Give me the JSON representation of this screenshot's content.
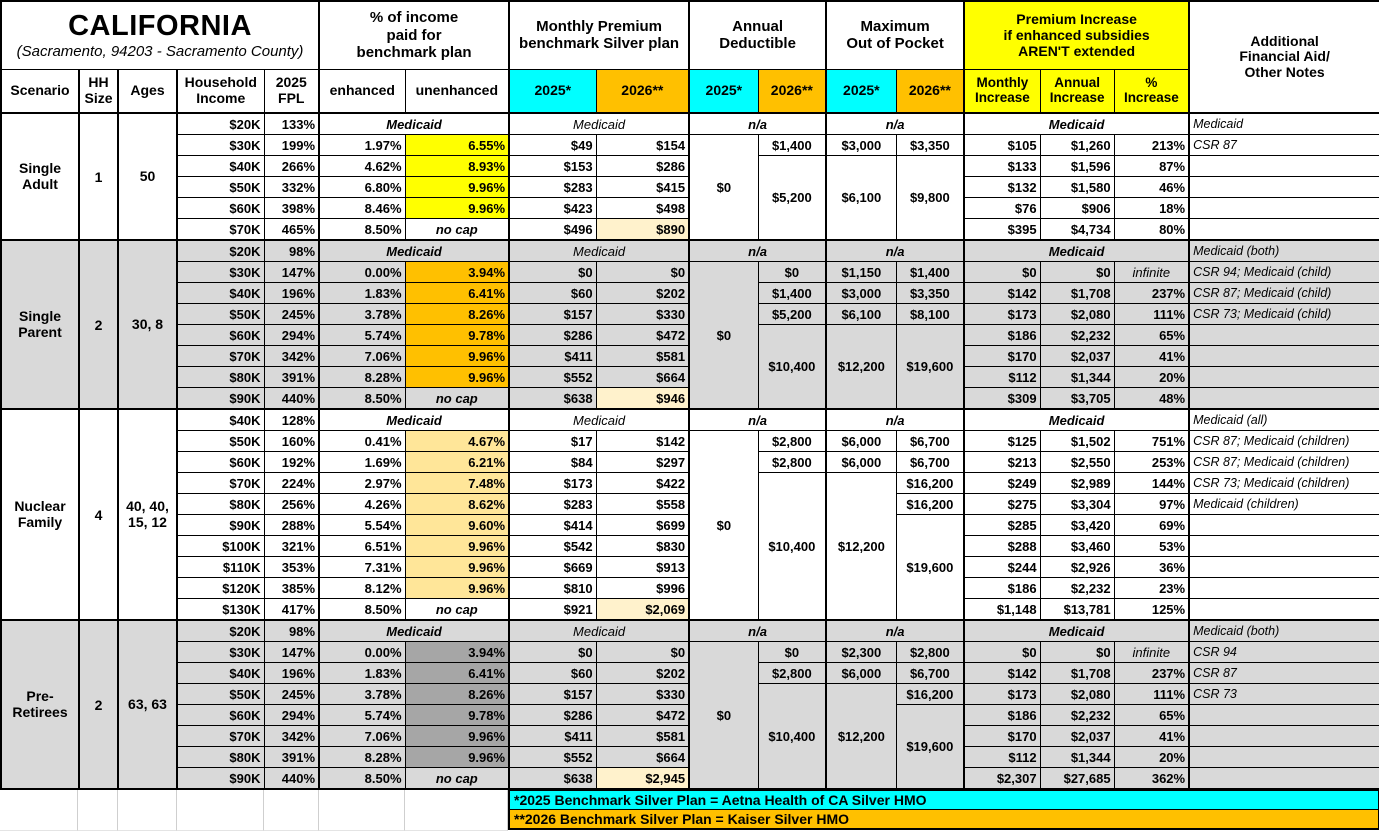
{
  "title": {
    "name": "CALIFORNIA",
    "location": "(Sacramento, 94203 - Sacramento County)"
  },
  "colors": {
    "cyan": "#00FFFF",
    "orange": "#FFC000",
    "yellow": "#FFFF00",
    "premium_highlight": "#FFF2CC",
    "light_gold": "#FFE699",
    "section_gray": "#D9D9D9",
    "dark_gray": "#A6A6A6"
  },
  "header": {
    "scenario": "Scenario",
    "hh_size": "HH\nSize",
    "ages": "Ages",
    "income": "Household\nIncome",
    "fpl": "2025\nFPL",
    "pct_income_group": "% of income\npaid for\nbenchmark plan",
    "enhanced": "enhanced",
    "unenhanced": "unenhanced",
    "premium_group": "Monthly Premium\nbenchmark Silver plan",
    "deductible_group": "Annual\nDeductible",
    "moop_group": "Maximum\nOut of Pocket",
    "increase_group": "Premium Increase\nif enhanced subsidies\nAREN'T extended",
    "y2025": "2025*",
    "y2026": "2026**",
    "monthly_increase": "Monthly\nIncrease",
    "annual_increase": "Annual\nIncrease",
    "pct_increase": "%\nIncrease",
    "notes_group": "Additional\nFinancial Aid/\nOther Notes"
  },
  "footnotes": {
    "f2025": "*2025 Benchmark Silver Plan = Aetna Health of CA Silver HMO",
    "f2026": "**2026 Benchmark Silver Plan = Kaiser Silver HMO"
  },
  "sections": [
    {
      "scenario": "Single\nAdult",
      "hh": "1",
      "ages": "50",
      "bg": "white",
      "unenhanced_bg": "yellow",
      "rows": [
        {
          "type": "medicaid",
          "income": "$20K",
          "fpl": "133%",
          "notes": "Medicaid"
        },
        {
          "income": "$30K",
          "fpl": "199%",
          "enh": "1.97%",
          "unenh": "6.55%",
          "p25": "$49",
          "p26": "$154",
          "d25": {
            "v": "$0",
            "rs": 5
          },
          "d26": "$1,400",
          "m25": "$3,000",
          "m26": "$3,350",
          "im": "$105",
          "ia": "$1,260",
          "ip": "213%",
          "notes": "CSR 87"
        },
        {
          "income": "$40K",
          "fpl": "266%",
          "enh": "4.62%",
          "unenh": "8.93%",
          "p25": "$153",
          "p26": "$286",
          "d26": {
            "v": "$5,200",
            "rs": 4
          },
          "m25": {
            "v": "$6,100",
            "rs": 4
          },
          "m26": {
            "v": "$9,800",
            "rs": 4
          },
          "im": "$133",
          "ia": "$1,596",
          "ip": "87%",
          "notes": ""
        },
        {
          "income": "$50K",
          "fpl": "332%",
          "enh": "6.80%",
          "unenh": "9.96%",
          "p25": "$283",
          "p26": "$415",
          "im": "$132",
          "ia": "$1,580",
          "ip": "46%",
          "notes": ""
        },
        {
          "income": "$60K",
          "fpl": "398%",
          "enh": "8.46%",
          "unenh": "9.96%",
          "p25": "$423",
          "p26": "$498",
          "im": "$76",
          "ia": "$906",
          "ip": "18%",
          "notes": ""
        },
        {
          "income": "$70K",
          "fpl": "465%",
          "enh": "8.50%",
          "nocap": true,
          "p25": "$496",
          "p26": "$890",
          "p26hl": true,
          "im": "$395",
          "ia": "$4,734",
          "ip": "80%",
          "notes": ""
        }
      ]
    },
    {
      "scenario": "Single\nParent",
      "hh": "2",
      "ages": "30, 8",
      "bg": "gray",
      "unenhanced_bg": "orange",
      "rows": [
        {
          "type": "medicaid",
          "income": "$20K",
          "fpl": "98%",
          "notes": "Medicaid (both)"
        },
        {
          "income": "$30K",
          "fpl": "147%",
          "enh": "0.00%",
          "unenh": "3.94%",
          "p25": "$0",
          "p26": "$0",
          "d25": {
            "v": "$0",
            "rs": 7
          },
          "d26": "$0",
          "m25": "$1,150",
          "m26": "$1,400",
          "im": "$0",
          "ia": "$0",
          "ip": "infinite",
          "notes": "CSR 94; Medicaid (child)"
        },
        {
          "income": "$40K",
          "fpl": "196%",
          "enh": "1.83%",
          "unenh": "6.41%",
          "p25": "$60",
          "p26": "$202",
          "d26": "$1,400",
          "m25": "$3,000",
          "m26": "$3,350",
          "im": "$142",
          "ia": "$1,708",
          "ip": "237%",
          "notes": "CSR 87; Medicaid (child)"
        },
        {
          "income": "$50K",
          "fpl": "245%",
          "enh": "3.78%",
          "unenh": "8.26%",
          "p25": "$157",
          "p26": "$330",
          "d26": "$5,200",
          "m25": "$6,100",
          "m26": "$8,100",
          "im": "$173",
          "ia": "$2,080",
          "ip": "111%",
          "notes": "CSR 73; Medicaid (child)"
        },
        {
          "income": "$60K",
          "fpl": "294%",
          "enh": "5.74%",
          "unenh": "9.78%",
          "p25": "$286",
          "p26": "$472",
          "d26": {
            "v": "$10,400",
            "rs": 4
          },
          "m25": {
            "v": "$12,200",
            "rs": 4
          },
          "m26": {
            "v": "$19,600",
            "rs": 4
          },
          "im": "$186",
          "ia": "$2,232",
          "ip": "65%",
          "notes": ""
        },
        {
          "income": "$70K",
          "fpl": "342%",
          "enh": "7.06%",
          "unenh": "9.96%",
          "p25": "$411",
          "p26": "$581",
          "im": "$170",
          "ia": "$2,037",
          "ip": "41%",
          "notes": ""
        },
        {
          "income": "$80K",
          "fpl": "391%",
          "enh": "8.28%",
          "unenh": "9.96%",
          "p25": "$552",
          "p26": "$664",
          "im": "$112",
          "ia": "$1,344",
          "ip": "20%",
          "notes": ""
        },
        {
          "income": "$90K",
          "fpl": "440%",
          "enh": "8.50%",
          "nocap": true,
          "p25": "$638",
          "p26": "$946",
          "p26hl": true,
          "im": "$309",
          "ia": "$3,705",
          "ip": "48%",
          "notes": ""
        }
      ]
    },
    {
      "scenario": "Nuclear\nFamily",
      "hh": "4",
      "ages": "40, 40,\n15, 12",
      "bg": "white",
      "unenhanced_bg": "light_gold",
      "rows": [
        {
          "type": "medicaid",
          "income": "$40K",
          "fpl": "128%",
          "notes": "Medicaid (all)"
        },
        {
          "income": "$50K",
          "fpl": "160%",
          "enh": "0.41%",
          "unenh": "4.67%",
          "p25": "$17",
          "p26": "$142",
          "d25": {
            "v": "$0",
            "rs": 9
          },
          "d26": "$2,800",
          "m25": "$6,000",
          "m26": "$6,700",
          "im": "$125",
          "ia": "$1,502",
          "ip": "751%",
          "notes": "CSR 87; Medicaid (children)"
        },
        {
          "income": "$60K",
          "fpl": "192%",
          "enh": "1.69%",
          "unenh": "6.21%",
          "p25": "$84",
          "p26": "$297",
          "d26": "$2,800",
          "m25": "$6,000",
          "m26": "$6,700",
          "im": "$213",
          "ia": "$2,550",
          "ip": "253%",
          "notes": "CSR 87; Medicaid (children)"
        },
        {
          "income": "$70K",
          "fpl": "224%",
          "enh": "2.97%",
          "unenh": "7.48%",
          "p25": "$173",
          "p26": "$422",
          "d26": {
            "v": "$10,400",
            "rs": 7
          },
          "m25": {
            "v": "$12,200",
            "rs": 7
          },
          "m26": "$16,200",
          "im": "$249",
          "ia": "$2,989",
          "ip": "144%",
          "notes": "CSR 73; Medicaid (children)"
        },
        {
          "income": "$80K",
          "fpl": "256%",
          "enh": "4.26%",
          "unenh": "8.62%",
          "p25": "$283",
          "p26": "$558",
          "m26": "$16,200",
          "im": "$275",
          "ia": "$3,304",
          "ip": "97%",
          "notes": "Medicaid (children)"
        },
        {
          "income": "$90K",
          "fpl": "288%",
          "enh": "5.54%",
          "unenh": "9.60%",
          "p25": "$414",
          "p26": "$699",
          "m26": {
            "v": "$19,600",
            "rs": 5
          },
          "im": "$285",
          "ia": "$3,420",
          "ip": "69%",
          "notes": ""
        },
        {
          "income": "$100K",
          "fpl": "321%",
          "enh": "6.51%",
          "unenh": "9.96%",
          "p25": "$542",
          "p26": "$830",
          "im": "$288",
          "ia": "$3,460",
          "ip": "53%",
          "notes": ""
        },
        {
          "income": "$110K",
          "fpl": "353%",
          "enh": "7.31%",
          "unenh": "9.96%",
          "p25": "$669",
          "p26": "$913",
          "im": "$244",
          "ia": "$2,926",
          "ip": "36%",
          "notes": ""
        },
        {
          "income": "$120K",
          "fpl": "385%",
          "enh": "8.12%",
          "unenh": "9.96%",
          "p25": "$810",
          "p26": "$996",
          "im": "$186",
          "ia": "$2,232",
          "ip": "23%",
          "notes": ""
        },
        {
          "income": "$130K",
          "fpl": "417%",
          "enh": "8.50%",
          "nocap": true,
          "p25": "$921",
          "p26": "$2,069",
          "p26hl": true,
          "im": "$1,148",
          "ia": "$13,781",
          "ip": "125%",
          "notes": ""
        }
      ]
    },
    {
      "scenario": "Pre-\nRetirees",
      "hh": "2",
      "ages": "63, 63",
      "bg": "gray",
      "unenhanced_bg": "dark_gray",
      "rows": [
        {
          "type": "medicaid",
          "income": "$20K",
          "fpl": "98%",
          "notes": "Medicaid (both)"
        },
        {
          "income": "$30K",
          "fpl": "147%",
          "enh": "0.00%",
          "unenh": "3.94%",
          "p25": "$0",
          "p26": "$0",
          "d25": {
            "v": "$0",
            "rs": 7
          },
          "d26": "$0",
          "m25": "$2,300",
          "m26": "$2,800",
          "im": "$0",
          "ia": "$0",
          "ip": "infinite",
          "notes": "CSR 94"
        },
        {
          "income": "$40K",
          "fpl": "196%",
          "enh": "1.83%",
          "unenh": "6.41%",
          "p25": "$60",
          "p26": "$202",
          "d26": "$2,800",
          "m25": "$6,000",
          "m26": "$6,700",
          "im": "$142",
          "ia": "$1,708",
          "ip": "237%",
          "notes": "CSR 87"
        },
        {
          "income": "$50K",
          "fpl": "245%",
          "enh": "3.78%",
          "unenh": "8.26%",
          "p25": "$157",
          "p26": "$330",
          "d26": {
            "v": "$10,400",
            "rs": 5
          },
          "m25": {
            "v": "$12,200",
            "rs": 5
          },
          "m26": "$16,200",
          "im": "$173",
          "ia": "$2,080",
          "ip": "111%",
          "notes": "CSR 73"
        },
        {
          "income": "$60K",
          "fpl": "294%",
          "enh": "5.74%",
          "unenh": "9.78%",
          "p25": "$286",
          "p26": "$472",
          "m26": {
            "v": "$19,600",
            "rs": 4
          },
          "im": "$186",
          "ia": "$2,232",
          "ip": "65%",
          "notes": ""
        },
        {
          "income": "$70K",
          "fpl": "342%",
          "enh": "7.06%",
          "unenh": "9.96%",
          "p25": "$411",
          "p26": "$581",
          "im": "$170",
          "ia": "$2,037",
          "ip": "41%",
          "notes": ""
        },
        {
          "income": "$80K",
          "fpl": "391%",
          "enh": "8.28%",
          "unenh": "9.96%",
          "p25": "$552",
          "p26": "$664",
          "im": "$112",
          "ia": "$1,344",
          "ip": "20%",
          "notes": ""
        },
        {
          "income": "$90K",
          "fpl": "440%",
          "enh": "8.50%",
          "nocap": true,
          "p25": "$638",
          "p26": "$2,945",
          "p26hl": true,
          "im": "$2,307",
          "ia": "$27,685",
          "ip": "362%",
          "notes": ""
        }
      ]
    }
  ]
}
